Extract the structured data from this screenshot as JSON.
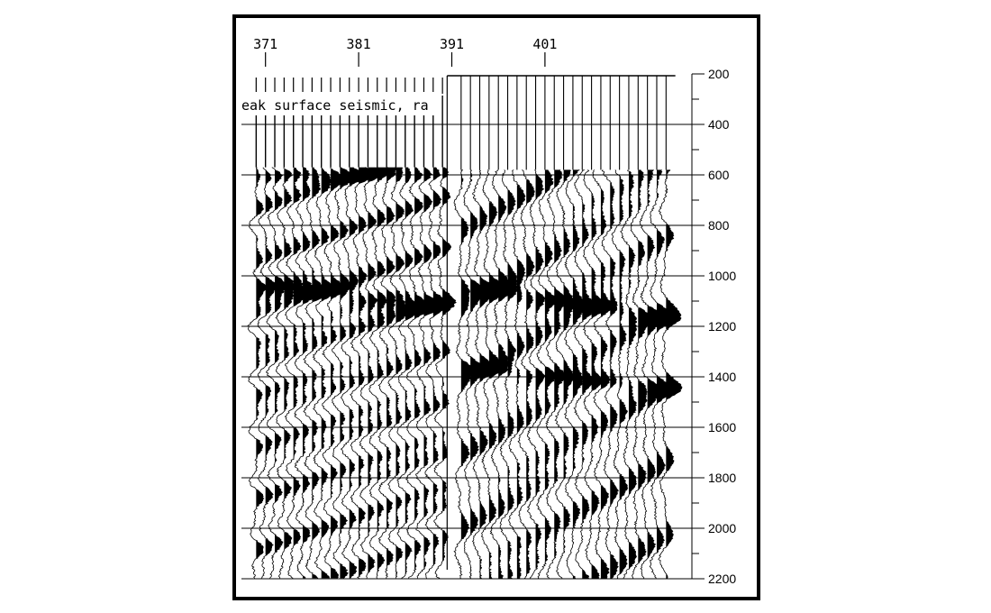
{
  "chart_data": {
    "type": "wiggle",
    "caption": "eak surface seismic, ra",
    "trace_ticks": [
      371,
      381,
      391,
      401
    ],
    "trace_range": [
      369,
      416
    ],
    "splice_trace": 391,
    "time_ticks": [
      200,
      400,
      600,
      800,
      1000,
      1200,
      1400,
      1600,
      1800,
      2000,
      2200
    ],
    "time_range": [
      200,
      2200
    ],
    "left_panel_traces": [
      370,
      371,
      372,
      373,
      374,
      375,
      376,
      377,
      378,
      379,
      380,
      381,
      382,
      383,
      384,
      385,
      386,
      387,
      388,
      389,
      390
    ],
    "right_panel_traces": [
      392,
      393,
      394,
      395,
      396,
      397,
      398,
      399,
      400,
      401,
      402,
      403,
      404,
      405,
      406,
      407,
      408,
      409,
      410,
      411,
      412,
      413,
      414
    ],
    "left_panel_signal_start": 570,
    "right_panel_signal_start": 580,
    "grid_times": [
      400,
      600,
      800,
      1000,
      1200,
      1400,
      1600,
      1800,
      2000,
      2200
    ],
    "fill": "positive",
    "colors": {
      "ink": "#000000",
      "background": "#ffffff",
      "grid": "#000000"
    }
  }
}
